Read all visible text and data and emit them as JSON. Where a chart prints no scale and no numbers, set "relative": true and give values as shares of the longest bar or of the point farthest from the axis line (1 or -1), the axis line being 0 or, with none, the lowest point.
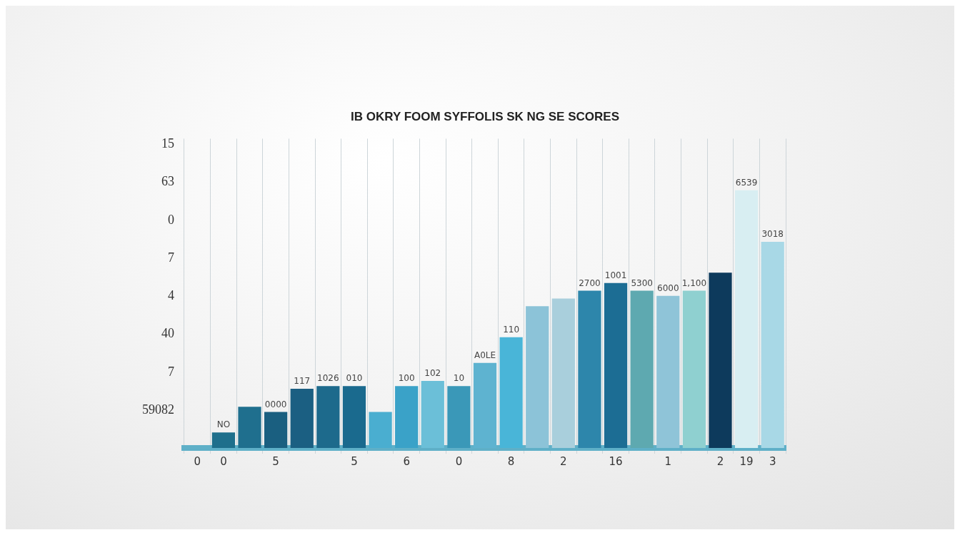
{
  "chart_data": {
    "type": "bar",
    "title": "IB OKRY FOOM SYFFOLIS SK NG SE SCORES",
    "relative": true,
    "categories": [
      "0",
      "0",
      null,
      "5",
      null,
      null,
      "5",
      null,
      "6",
      null,
      "0",
      null,
      "8",
      null,
      "2",
      null,
      "16",
      null,
      "1",
      null,
      "2",
      "19",
      "3"
    ],
    "values": [
      null,
      0.06,
      0.16,
      0.14,
      0.23,
      0.24,
      0.24,
      0.14,
      0.24,
      0.26,
      0.24,
      0.33,
      0.43,
      0.55,
      0.58,
      0.61,
      0.64,
      0.61,
      0.59,
      0.61,
      0.68,
      1,
      0.8
    ],
    "colors": [
      "#1e6f8c",
      "#1e6f8c",
      "#1f6f8e",
      "#1a5f80",
      "#1b5f82",
      "#1d6a8c",
      "#1a6a8e",
      "#4aaed0",
      "#3aa2c8",
      "#6bbfd8",
      "#3a98b8",
      "#5eb3d0",
      "#49b5d8",
      "#8cc3d8",
      "#a9cfdc",
      "#2d86ab",
      "#1c6d94",
      "#5ea9b0",
      "#8fc4d8",
      "#8fd0d0",
      "#0d3a5c",
      "#d8eef2",
      "#a8d8e6"
    ],
    "annotations": [
      "15",
      "63",
      "0",
      "7",
      "4",
      "40",
      "7",
      "59082",
      {
        "text": "NO",
        "y": 0.06
      },
      {
        "text": "0000",
        "x": "5",
        "y": 0.14
      },
      {
        "text": "117",
        "y": 0.23
      },
      {
        "text": "1026",
        "y": 0.24
      },
      {
        "text": "010",
        "y": 0.24
      },
      {
        "text": "100",
        "x": "6",
        "y": 0.24
      },
      {
        "text": "102",
        "y": 0.26
      },
      {
        "text": "10",
        "y": 0.24
      },
      {
        "text": "A0LE",
        "y": 0.33
      },
      {
        "text": "110",
        "x": "8",
        "y": 0.43
      },
      {
        "text": "2700",
        "y": 0.61
      },
      {
        "text": "1001",
        "x": "16",
        "y": 0.64
      },
      {
        "text": "5300",
        "y": 0.61
      },
      {
        "text": "6000",
        "x": "1",
        "y": 0.59
      },
      {
        "text": "1,100",
        "y": 0.61
      },
      {
        "text": "6539",
        "x": "19",
        "y": 1
      },
      {
        "text": "3018",
        "x": "3",
        "y": 0.8
      }
    ],
    "grid": "x"
  }
}
